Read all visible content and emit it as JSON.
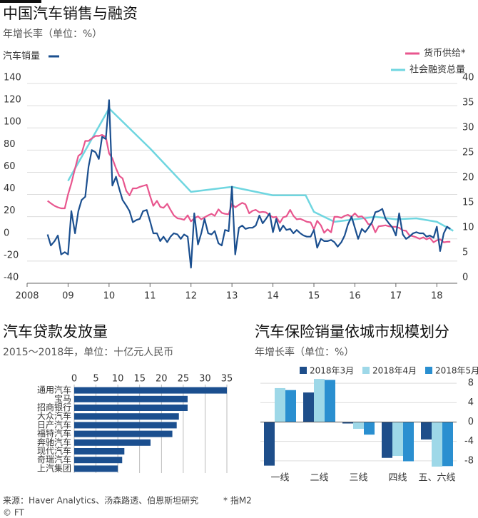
{
  "header": {
    "source": "来源：Haver Analytics、汤森路透、伯恩斯坦研究",
    "note": "* 指M2",
    "copyright": "© FT"
  },
  "chart_data": [
    {
      "type": "line",
      "title": "中国汽车销售与融资",
      "subtitle": "年增长率（单位：%）",
      "xlim": [
        2008,
        2018.5
      ],
      "xticks": [
        2008,
        {
          "value": 2009,
          "label": "09"
        },
        {
          "value": 2010,
          "label": "10"
        },
        {
          "value": 2011,
          "label": "11"
        },
        {
          "value": 2012,
          "label": "12"
        },
        {
          "value": 2013,
          "label": "13"
        },
        {
          "value": 2014,
          "label": "14"
        },
        {
          "value": 2015,
          "label": "15"
        },
        {
          "value": 2016,
          "label": "16"
        },
        {
          "value": 2017,
          "label": "17"
        },
        {
          "value": 2018,
          "label": "18"
        }
      ],
      "ylim": [
        -40,
        140
      ],
      "yticks": [
        -40,
        -20,
        0,
        20,
        40,
        60,
        80,
        100,
        120,
        140
      ],
      "y2lim": [
        0,
        40
      ],
      "y2ticks": [
        0,
        5,
        10,
        15,
        20,
        25,
        30,
        35,
        40
      ],
      "grid": true,
      "x": [
        2008.5,
        2008.58,
        2008.67,
        2008.75,
        2008.83,
        2008.92,
        2009.0,
        2009.08,
        2009.17,
        2009.25,
        2009.33,
        2009.42,
        2009.5,
        2009.58,
        2009.67,
        2009.75,
        2009.83,
        2009.92,
        2010.0,
        2010.08,
        2010.17,
        2010.25,
        2010.33,
        2010.42,
        2010.5,
        2010.58,
        2010.67,
        2010.75,
        2010.83,
        2010.92,
        2011.0,
        2011.08,
        2011.17,
        2011.25,
        2011.33,
        2011.42,
        2011.5,
        2011.58,
        2011.67,
        2011.75,
        2011.83,
        2011.92,
        2012.0,
        2012.08,
        2012.17,
        2012.25,
        2012.33,
        2012.42,
        2012.5,
        2012.58,
        2012.67,
        2012.75,
        2012.83,
        2012.92,
        2013.0,
        2013.08,
        2013.17,
        2013.25,
        2013.33,
        2013.42,
        2013.5,
        2013.58,
        2013.67,
        2013.75,
        2013.83,
        2013.92,
        2014.0,
        2014.08,
        2014.17,
        2014.25,
        2014.33,
        2014.42,
        2014.5,
        2014.58,
        2014.67,
        2014.75,
        2014.83,
        2014.92,
        2015.0,
        2015.08,
        2015.17,
        2015.25,
        2015.33,
        2015.42,
        2015.5,
        2015.58,
        2015.67,
        2015.75,
        2015.83,
        2015.92,
        2016.0,
        2016.08,
        2016.17,
        2016.25,
        2016.33,
        2016.42,
        2016.5,
        2016.58,
        2016.67,
        2016.75,
        2016.83,
        2016.92,
        2017.0,
        2017.08,
        2017.17,
        2017.25,
        2017.33,
        2017.42,
        2017.5,
        2017.58,
        2017.67,
        2017.75,
        2017.83,
        2017.92,
        2018.0,
        2018.08,
        2018.17,
        2018.25,
        2018.33
      ],
      "series": [
        {
          "name": "汽车销量",
          "color": "#1b4f8f",
          "axis": "y",
          "values": [
            4,
            -6,
            -2,
            3,
            -14,
            -12,
            -14,
            25,
            5,
            25,
            35,
            38,
            65,
            80,
            78,
            72,
            92,
            90,
            125,
            48,
            56,
            45,
            35,
            30,
            25,
            15,
            17,
            18,
            25,
            26,
            16,
            5,
            5,
            -2,
            2,
            -3,
            2,
            5,
            4,
            0,
            4,
            2,
            -26,
            23,
            -5,
            5,
            18,
            5,
            4,
            7,
            -4,
            -6,
            8,
            7,
            47,
            -14,
            10,
            12,
            9,
            10,
            10,
            12,
            21,
            14,
            18,
            23,
            6,
            18,
            7,
            12,
            8,
            9,
            5,
            8,
            5,
            3,
            2,
            2,
            8,
            -8,
            0,
            -2,
            -2,
            -1,
            -3,
            -7,
            -3,
            3,
            13,
            20,
            10,
            0,
            9,
            6,
            10,
            15,
            24,
            25,
            27,
            18,
            14,
            10,
            3,
            23,
            4,
            0,
            2,
            5,
            6,
            5,
            5,
            2,
            3,
            1,
            11,
            -11,
            5,
            11,
            9
          ]
        },
        {
          "name": "货币供给*",
          "color": "#e8568e",
          "axis": "y2",
          "values": [
            16.5,
            16,
            15.5,
            15.2,
            15,
            15,
            17.8,
            20,
            23,
            25.5,
            26,
            28.5,
            28.5,
            29,
            29.5,
            29.5,
            29.7,
            29.3,
            26,
            25,
            23,
            21.5,
            21,
            18.5,
            17.6,
            19,
            19,
            19.3,
            19.5,
            19.7,
            17.5,
            15.5,
            16.5,
            15.3,
            15.1,
            15.9,
            14.7,
            13.6,
            13,
            12.9,
            12.7,
            13.6,
            12.4,
            13,
            13.4,
            12.8,
            13.2,
            13.6,
            13.9,
            13.5,
            14.8,
            14.1,
            13.9,
            13.8,
            15.9,
            15.2,
            15.7,
            16.1,
            15.8,
            14,
            14.5,
            14.7,
            14.2,
            14.3,
            14.2,
            13.6,
            13.2,
            13.3,
            12.1,
            13.2,
            13.4,
            14.7,
            13.5,
            12.8,
            12.9,
            12.6,
            12.3,
            12.2,
            10.8,
            12.5,
            11.6,
            10.1,
            10.8,
            10.2,
            13.3,
            13.3,
            13.1,
            13.5,
            13.7,
            13.3,
            14,
            13.3,
            13.4,
            12.8,
            11.8,
            11.8,
            10.2,
            11.4,
            11.5,
            11.6,
            11.4,
            11.3,
            11.3,
            11.1,
            10.6,
            10.5,
            9.6,
            9.4,
            9.2,
            8.9,
            9.2,
            8.8,
            9.1,
            8.2,
            8.6,
            8.8,
            8.2,
            8.3,
            8.3
          ]
        },
        {
          "name": "社会融资总量",
          "color": "#6fd6e0",
          "axis": "y2",
          "x": [
            2009,
            2010,
            2011,
            2012,
            2013,
            2014,
            2014.8,
            2015,
            2015.5,
            2016,
            2016.5,
            2017,
            2017.5,
            2018,
            2018.4
          ],
          "values": [
            20.5,
            35,
            27,
            18.3,
            19.3,
            17.6,
            17.6,
            14.3,
            12.3,
            12.8,
            13.3,
            12.8,
            13,
            12.3,
            10.5
          ]
        }
      ]
    },
    {
      "type": "bar",
      "horizontal": true,
      "title": "汽车贷款发放量",
      "subtitle": "2015～2018年，单位：十亿元人民币",
      "categories": [
        "通用汽车",
        "宝马",
        "招商银行",
        "大众汽车",
        "日产汽车",
        "福特汽车",
        "奔驰汽车",
        "现代汽车",
        "奇瑞汽车",
        "上汽集团"
      ],
      "values": [
        35,
        26,
        26,
        24,
        23.5,
        22.5,
        17.5,
        11.5,
        11,
        10
      ],
      "color": "#1b4f8f",
      "xlim": [
        0,
        35
      ],
      "xticks": [
        0,
        5,
        10,
        15,
        20,
        25,
        30,
        35
      ],
      "grid": true
    },
    {
      "type": "bar",
      "title": "汽车保险销量依城市规模划分",
      "subtitle": "年增长率（单位：%）",
      "categories": [
        "一线",
        "二线",
        "三线",
        "四线",
        "五、六线"
      ],
      "series": [
        {
          "name": "2018年3月",
          "color": "#1e4e8a",
          "values": [
            -9,
            6.1,
            -0.3,
            -7.4,
            -3.6
          ]
        },
        {
          "name": "2018年4月",
          "color": "#9ed8e8",
          "values": [
            7,
            8.9,
            -1.4,
            -7,
            -9.2
          ]
        },
        {
          "name": "2018年5月",
          "color": "#2a8fd0",
          "values": [
            6.6,
            8.7,
            -2.6,
            -8.1,
            -9.1
          ]
        }
      ],
      "ylim": [
        -9.5,
        9.5
      ],
      "yticks": [
        -8,
        -4,
        0,
        4,
        8
      ],
      "grid": true
    }
  ]
}
